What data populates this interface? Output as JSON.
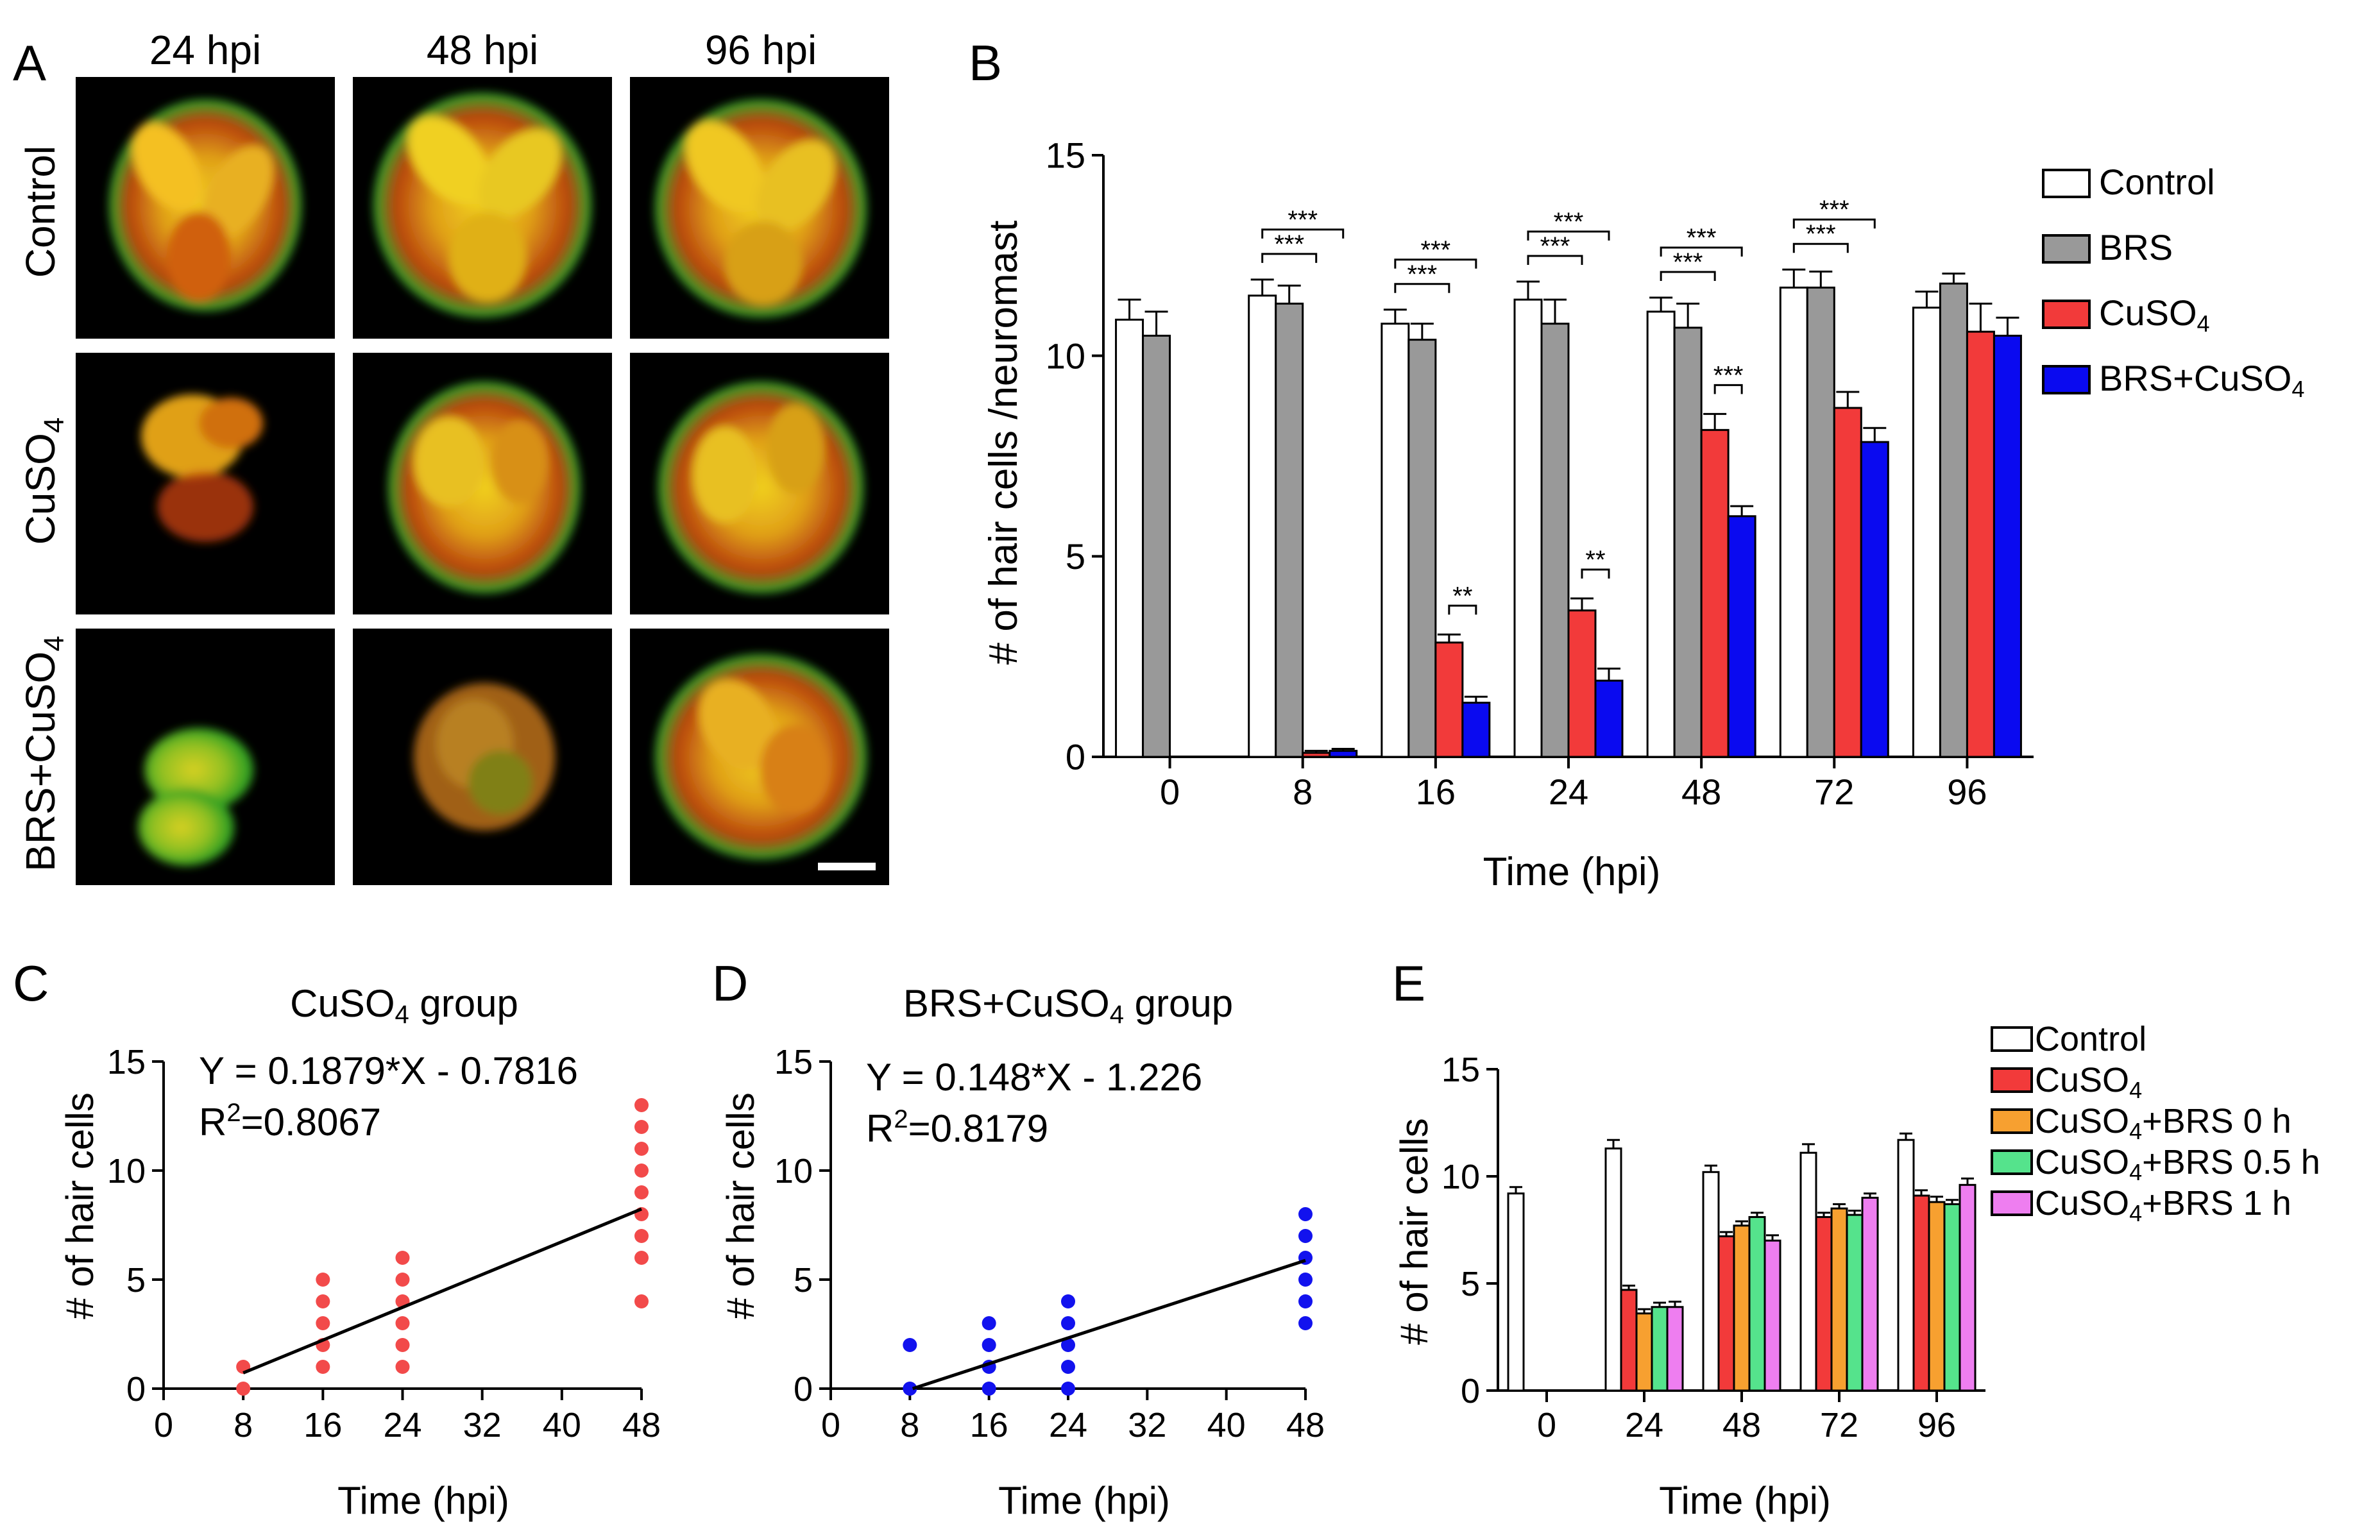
{
  "colors": {
    "control": "#ffffff",
    "brs": "#999999",
    "cuso4": "#f23a3a",
    "brs_cuso4": "#0a0af0",
    "brs0": "#f7a030",
    "brs05": "#55e38c",
    "brs1": "#ee7ef0",
    "scatter_c": "#f24a4a",
    "scatter_d": "#1212ee"
  },
  "panel_a": {
    "label": "A",
    "col_headers": [
      "24 hpi",
      "48 hpi",
      "96 hpi"
    ],
    "row_labels": [
      "Control",
      "CuSO",
      "BRS+CuSO"
    ],
    "row_label_subs": [
      "",
      "4",
      "4"
    ],
    "scale_bar": "scale-bar"
  },
  "panel_b": {
    "label": "B"
  },
  "panel_c": {
    "label": "C",
    "title": "CuSO",
    "title_sub": "4",
    "title_rest": " group",
    "equation": "Y = 0.1879*X - 0.7816",
    "r2": "R",
    "r2_sup": "2",
    "r2_val": "=0.8067"
  },
  "panel_d": {
    "label": "D",
    "title": "BRS+CuSO",
    "title_sub": "4",
    "title_rest": " group",
    "equation": "Y = 0.148*X - 1.226",
    "r2": "R",
    "r2_sup": "2",
    "r2_val": "=0.8179"
  },
  "panel_e": {
    "label": "E"
  },
  "chart_data": [
    {
      "id": "B",
      "type": "bar",
      "title": "",
      "xlabel": "Time (hpi)",
      "ylabel": "# of hair cells /neuromast",
      "ylim": [
        0,
        15
      ],
      "yticks": [
        0,
        5,
        10,
        15
      ],
      "categories": [
        "0",
        "8",
        "16",
        "24",
        "48",
        "72",
        "96"
      ],
      "legend_position": "right",
      "series": [
        {
          "name": "Control",
          "legend": [
            "Control",
            ""
          ],
          "color_key": "control",
          "values": [
            10.9,
            11.5,
            10.8,
            11.4,
            11.1,
            11.7,
            11.2
          ],
          "errors": [
            0.5,
            0.4,
            0.35,
            0.45,
            0.35,
            0.45,
            0.4
          ]
        },
        {
          "name": "BRS",
          "legend": [
            "BRS",
            ""
          ],
          "color_key": "brs",
          "values": [
            10.5,
            11.3,
            10.4,
            10.8,
            10.7,
            11.7,
            11.8
          ],
          "errors": [
            0.6,
            0.45,
            0.4,
            0.6,
            0.6,
            0.4,
            0.25
          ]
        },
        {
          "name": "CuSO4",
          "legend": [
            "CuSO",
            "4"
          ],
          "color_key": "cuso4",
          "values": [
            null,
            0.1,
            2.85,
            3.65,
            8.15,
            8.7,
            10.6
          ],
          "errors": [
            0,
            0.05,
            0.2,
            0.3,
            0.4,
            0.4,
            0.7
          ]
        },
        {
          "name": "BRS+CuSO4",
          "legend": [
            "BRS+CuSO",
            "4"
          ],
          "color_key": "brs_cuso4",
          "values": [
            null,
            0.15,
            1.35,
            1.9,
            6.0,
            7.85,
            10.5
          ],
          "errors": [
            0,
            0.05,
            0.15,
            0.3,
            0.25,
            0.35,
            0.45
          ]
        }
      ],
      "significance": [
        {
          "category": "8",
          "from": 0,
          "to": 2,
          "label": "***"
        },
        {
          "category": "8",
          "from": 0,
          "to": 3,
          "label": "***"
        },
        {
          "category": "16",
          "from": 0,
          "to": 2,
          "label": "***"
        },
        {
          "category": "16",
          "from": 0,
          "to": 3,
          "label": "***"
        },
        {
          "category": "16",
          "from": 2,
          "to": 3,
          "label": "**"
        },
        {
          "category": "24",
          "from": 0,
          "to": 2,
          "label": "***"
        },
        {
          "category": "24",
          "from": 0,
          "to": 3,
          "label": "***"
        },
        {
          "category": "24",
          "from": 2,
          "to": 3,
          "label": "**"
        },
        {
          "category": "48",
          "from": 0,
          "to": 2,
          "label": "***"
        },
        {
          "category": "48",
          "from": 0,
          "to": 3,
          "label": "***"
        },
        {
          "category": "48",
          "from": 2,
          "to": 3,
          "label": "***"
        },
        {
          "category": "72",
          "from": 0,
          "to": 2,
          "label": "***"
        },
        {
          "category": "72",
          "from": 0,
          "to": 3,
          "label": "***"
        }
      ]
    },
    {
      "id": "C",
      "type": "scatter",
      "title": "CuSO4 group",
      "xlabel": "Time (hpi)",
      "ylabel": "# of hair cells",
      "xlim": [
        0,
        48
      ],
      "ylim": [
        0,
        15
      ],
      "xticks": [
        0,
        8,
        16,
        24,
        32,
        40,
        48
      ],
      "yticks": [
        0,
        5,
        10,
        15
      ],
      "color_key": "scatter_c",
      "points": [
        {
          "x": 8,
          "ys": [
            0,
            1
          ]
        },
        {
          "x": 16,
          "ys": [
            1,
            2,
            3,
            4,
            5
          ]
        },
        {
          "x": 24,
          "ys": [
            1,
            2,
            3,
            4,
            5,
            6
          ]
        },
        {
          "x": 48,
          "ys": [
            4,
            6,
            7,
            8,
            9,
            10,
            11,
            12,
            13
          ]
        }
      ],
      "fit": {
        "slope": 0.1879,
        "intercept": -0.7816,
        "x_from": 8,
        "x_to": 48
      }
    },
    {
      "id": "D",
      "type": "scatter",
      "title": "BRS+CuSO4 group",
      "xlabel": "Time (hpi)",
      "ylabel": "# of hair cells",
      "xlim": [
        0,
        48
      ],
      "ylim": [
        0,
        15
      ],
      "xticks": [
        0,
        8,
        16,
        24,
        32,
        40,
        48
      ],
      "yticks": [
        0,
        5,
        10,
        15
      ],
      "color_key": "scatter_d",
      "points": [
        {
          "x": 8,
          "ys": [
            0,
            2
          ]
        },
        {
          "x": 16,
          "ys": [
            0,
            1,
            2,
            3
          ]
        },
        {
          "x": 24,
          "ys": [
            0,
            1,
            2,
            3,
            4
          ]
        },
        {
          "x": 48,
          "ys": [
            3,
            4,
            5,
            6,
            7,
            8
          ]
        }
      ],
      "fit": {
        "slope": 0.148,
        "intercept": -1.226,
        "x_from": 8,
        "x_to": 48
      }
    },
    {
      "id": "E",
      "type": "bar",
      "title": "",
      "xlabel": "Time (hpi)",
      "ylabel": "# of hair cells",
      "ylim": [
        0,
        15
      ],
      "yticks": [
        0,
        5,
        10,
        15
      ],
      "categories": [
        "0",
        "24",
        "48",
        "72",
        "96"
      ],
      "legend_position": "top-right",
      "series": [
        {
          "name": "Control",
          "legend": [
            "Control",
            ""
          ],
          "color_key": "control",
          "values": [
            9.2,
            11.3,
            10.2,
            11.1,
            11.7
          ],
          "errors": [
            0.3,
            0.4,
            0.3,
            0.4,
            0.3
          ]
        },
        {
          "name": "CuSO4",
          "legend": [
            "CuSO",
            "4"
          ],
          "color_key": "cuso4",
          "values": [
            null,
            4.7,
            7.2,
            8.1,
            9.1
          ],
          "errors": [
            0,
            0.2,
            0.2,
            0.2,
            0.25
          ]
        },
        {
          "name": "CuSO4+BRS 0 h",
          "legend": [
            "CuSO",
            "4",
            "+BRS 0 h"
          ],
          "color_key": "brs0",
          "values": [
            null,
            3.6,
            7.7,
            8.5,
            8.8
          ],
          "errors": [
            0,
            0.2,
            0.2,
            0.2,
            0.25
          ]
        },
        {
          "name": "CuSO4+BRS 0.5 h",
          "legend": [
            "CuSO",
            "4",
            "+BRS 0.5 h"
          ],
          "color_key": "brs05",
          "values": [
            null,
            3.9,
            8.1,
            8.2,
            8.7
          ],
          "errors": [
            0,
            0.2,
            0.2,
            0.2,
            0.2
          ]
        },
        {
          "name": "CuSO4+BRS 1 h",
          "legend": [
            "CuSO",
            "4",
            "+BRS 1 h"
          ],
          "color_key": "brs1",
          "values": [
            null,
            3.9,
            7.0,
            9.0,
            9.6
          ],
          "errors": [
            0,
            0.25,
            0.25,
            0.2,
            0.3
          ]
        }
      ]
    }
  ]
}
